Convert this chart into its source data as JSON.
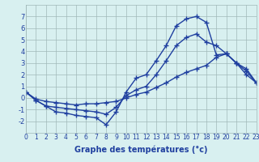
{
  "xlabel": "Graphe des températures (°c)",
  "hours": [
    0,
    1,
    2,
    3,
    4,
    5,
    6,
    7,
    8,
    9,
    10,
    11,
    12,
    13,
    14,
    15,
    16,
    17,
    18,
    19,
    20,
    21,
    22,
    23
  ],
  "line1": [
    0.5,
    -0.2,
    -0.7,
    -1.2,
    -1.3,
    -1.5,
    -1.6,
    -1.7,
    -2.3,
    -1.2,
    0.5,
    1.7,
    2.0,
    3.2,
    4.5,
    6.2,
    6.8,
    7.0,
    6.5,
    3.7,
    3.8,
    3.0,
    2.0,
    1.3
  ],
  "line2": [
    0.5,
    -0.2,
    -0.7,
    -0.8,
    -0.9,
    -1.0,
    -1.1,
    -1.2,
    -1.4,
    -0.8,
    0.2,
    0.7,
    1.0,
    2.0,
    3.2,
    4.5,
    5.2,
    5.5,
    4.8,
    4.5,
    3.8,
    3.0,
    2.5,
    1.3
  ],
  "line3": [
    0.5,
    -0.1,
    -0.3,
    -0.4,
    -0.5,
    -0.6,
    -0.5,
    -0.5,
    -0.4,
    -0.3,
    0.0,
    0.3,
    0.5,
    0.9,
    1.3,
    1.8,
    2.2,
    2.5,
    2.8,
    3.5,
    3.8,
    3.0,
    2.3,
    1.3
  ],
  "line_color": "#1f3f9f",
  "bg_color": "#d8f0f0",
  "grid_color": "#a0b8b8",
  "ylim": [
    -3,
    8
  ],
  "yticks": [
    -2,
    -1,
    0,
    1,
    2,
    3,
    4,
    5,
    6,
    7
  ],
  "xlim": [
    0,
    23
  ],
  "xticks": [
    0,
    1,
    2,
    3,
    4,
    5,
    6,
    7,
    8,
    9,
    10,
    11,
    12,
    13,
    14,
    15,
    16,
    17,
    18,
    19,
    20,
    21,
    22,
    23
  ],
  "marker": "+",
  "markersize": 5,
  "linewidth": 1.0
}
